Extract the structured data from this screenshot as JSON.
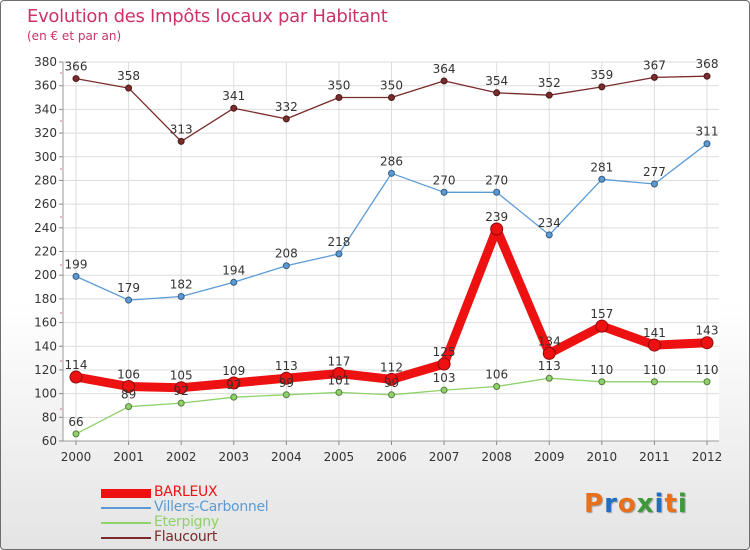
{
  "title": "Evolution des Impôts locaux par Habitant",
  "subtitle": "(en € et par an)",
  "logo": {
    "text": "Proxiti",
    "letter_colors": [
      "#e8701a",
      "#1f6fc4",
      "#e8701a",
      "#3c9a3c",
      "#1f6fc4",
      "#e8701a",
      "#3c9a3c"
    ]
  },
  "chart_data": {
    "type": "line",
    "title": "Evolution des Impôts locaux par Habitant",
    "subtitle": "(en € et par an)",
    "xlabel": "",
    "ylabel": "",
    "x": [
      "2000",
      "2001",
      "2002",
      "2003",
      "2004",
      "2005",
      "2006",
      "2007",
      "2008",
      "2009",
      "2010",
      "2011",
      "2012"
    ],
    "ylim": [
      60,
      380
    ],
    "yticks": [
      60,
      80,
      100,
      120,
      140,
      160,
      180,
      200,
      220,
      240,
      260,
      280,
      300,
      320,
      340,
      360,
      380
    ],
    "grid": true,
    "legend_position": "bottom-left",
    "series": [
      {
        "name": "Flaucourt",
        "color": "#7a2b2b",
        "values": [
          366,
          358,
          313,
          341,
          332,
          350,
          350,
          364,
          354,
          352,
          359,
          367,
          368
        ]
      },
      {
        "name": "Villers-Carbonnel",
        "color": "#5b9bd5",
        "values": [
          199,
          179,
          182,
          194,
          208,
          218,
          286,
          270,
          270,
          234,
          281,
          277,
          311
        ]
      },
      {
        "name": "Eterpigny",
        "color": "#8fd16a",
        "values": [
          66,
          89,
          92,
          97,
          99,
          101,
          99,
          103,
          106,
          113,
          110,
          110,
          110
        ]
      },
      {
        "name": "BARLEUX",
        "color": "#ee1111",
        "values": [
          114,
          106,
          105,
          109,
          113,
          117,
          112,
          125,
          239,
          134,
          157,
          141,
          143
        ]
      }
    ],
    "legend_order": [
      "BARLEUX",
      "Villers-Carbonnel",
      "Eterpigny",
      "Flaucourt"
    ]
  }
}
